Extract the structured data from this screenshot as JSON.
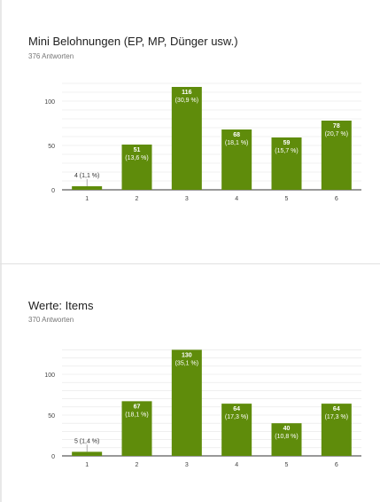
{
  "colors": {
    "bar": "#5f8c0b",
    "grid": "#e6e6e6",
    "axis": "#333333",
    "label_light": "#ffffff",
    "label_dark": "#333333"
  },
  "cards": [
    {
      "title": "Mini Belohnungen (EP, MP, Dünger usw.)",
      "responses": "376 Antworten"
    },
    {
      "title": "Werte: Items",
      "responses": "370 Antworten"
    }
  ],
  "chart_data": [
    {
      "type": "bar",
      "categories": [
        "1",
        "2",
        "3",
        "4",
        "5",
        "6"
      ],
      "values": [
        4,
        51,
        116,
        68,
        59,
        78
      ],
      "data_labels": [
        [
          "4 (1,1 %)"
        ],
        [
          "51",
          "(13,6 %)"
        ],
        [
          "116",
          "(30,9 %)"
        ],
        [
          "68",
          "(18,1 %)"
        ],
        [
          "59",
          "(15,7 %)"
        ],
        [
          "78",
          "(20,7 %)"
        ]
      ],
      "y_ticks": [
        0,
        50,
        100
      ],
      "ylim": [
        0,
        120
      ],
      "grid": true
    },
    {
      "type": "bar",
      "categories": [
        "1",
        "2",
        "3",
        "4",
        "5",
        "6"
      ],
      "values": [
        5,
        67,
        130,
        64,
        40,
        64
      ],
      "data_labels": [
        [
          "5 (1,4 %)"
        ],
        [
          "67",
          "(18,1 %)"
        ],
        [
          "130",
          "(35,1 %)"
        ],
        [
          "64",
          "(17,3 %)"
        ],
        [
          "40",
          "(10,8 %)"
        ],
        [
          "64",
          "(17,3 %)"
        ]
      ],
      "y_ticks": [
        0,
        50,
        100
      ],
      "ylim": [
        0,
        130
      ],
      "grid": true
    }
  ]
}
